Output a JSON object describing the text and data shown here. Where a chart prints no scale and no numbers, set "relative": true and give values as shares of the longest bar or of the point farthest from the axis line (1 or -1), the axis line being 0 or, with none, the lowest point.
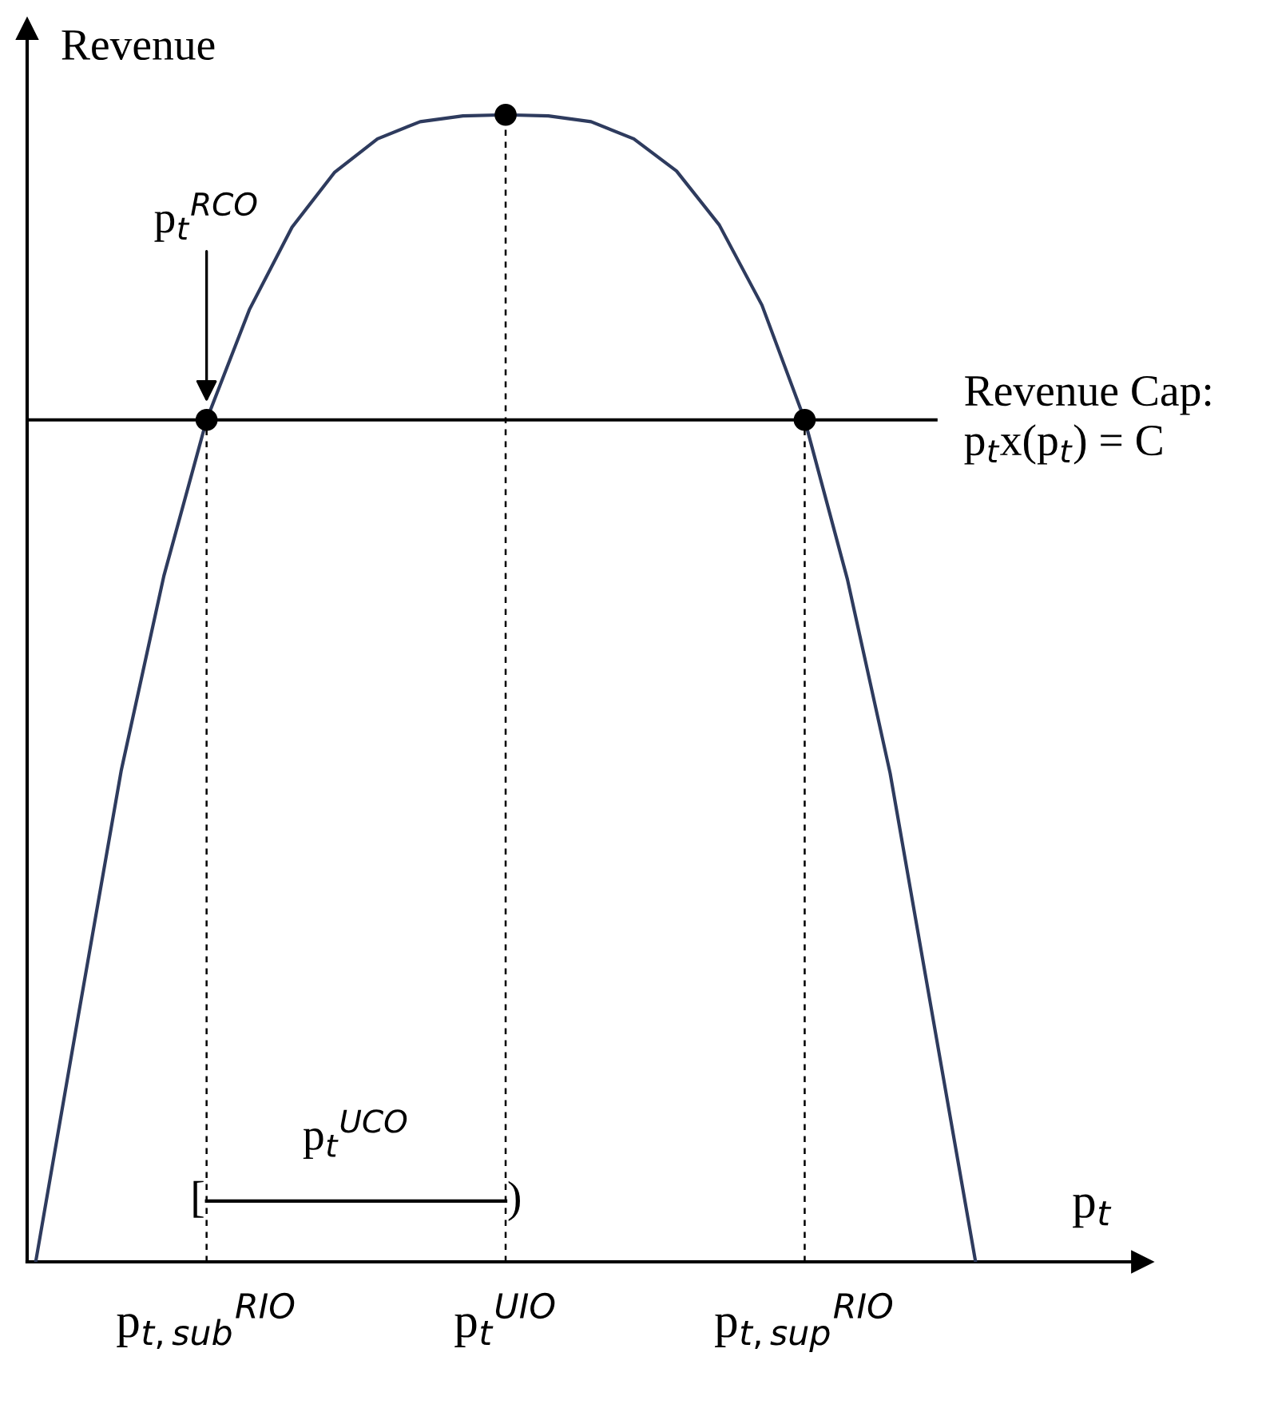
{
  "chart_data": {
    "type": "line",
    "relative": true,
    "xlabel": "p$_{t}$",
    "ylabel": "Revenue",
    "categories": [
      null,
      null,
      null,
      null,
      "p$_{t,sub}$$^{RIO}$",
      null,
      null,
      null,
      null,
      null,
      null,
      "p$_{t}$$^{UIO}$",
      null,
      null,
      null,
      null,
      null,
      null,
      "p$_{t,sup}$$^{RIO}$",
      null,
      null,
      null,
      null
    ],
    "series": [
      {
        "color": "#2e3b5e",
        "marker": "none",
        "line_style": "solid",
        "values": [
          0,
          0.215,
          0.428,
          0.598,
          0.734,
          0.83,
          0.902,
          0.95,
          0.979,
          0.994,
          0.999,
          1,
          0.999,
          0.994,
          0.979,
          0.951,
          0.904,
          0.834,
          0.734,
          0.595,
          0.426,
          0.213,
          0
        ]
      },
      {
        "type": "lollipop",
        "color": "#000000",
        "marker": "circle",
        "line_style": "dashed",
        "values": [
          null,
          null,
          null,
          null,
          0.734,
          null,
          null,
          null,
          null,
          null,
          null,
          1,
          null,
          null,
          null,
          null,
          null,
          null,
          0.734,
          null,
          null,
          null,
          null
        ]
      },
      {
        "type": "line",
        "color": "#000000",
        "marker": "none",
        "line_style": "solid",
        "values": [
          null,
          null,
          null,
          null,
          0.053,
          0.053,
          0.053,
          0.053,
          0.053,
          0.053,
          0.053,
          0.053,
          null,
          null,
          null,
          null,
          null,
          null,
          null,
          null,
          null,
          null,
          null
        ]
      }
    ],
    "ref_lines": [
      {
        "axis": "y",
        "value": 0.734,
        "label": "Revenue Cap:\np$_{t}$x(p$_{t}$) = C",
        "color": "#000000",
        "line_style": "solid"
      }
    ],
    "annotations": [
      "p$_{t}$$^{RCO}$",
      "p$_{t}$$^{UCO}$",
      "[",
      ")"
    ]
  }
}
